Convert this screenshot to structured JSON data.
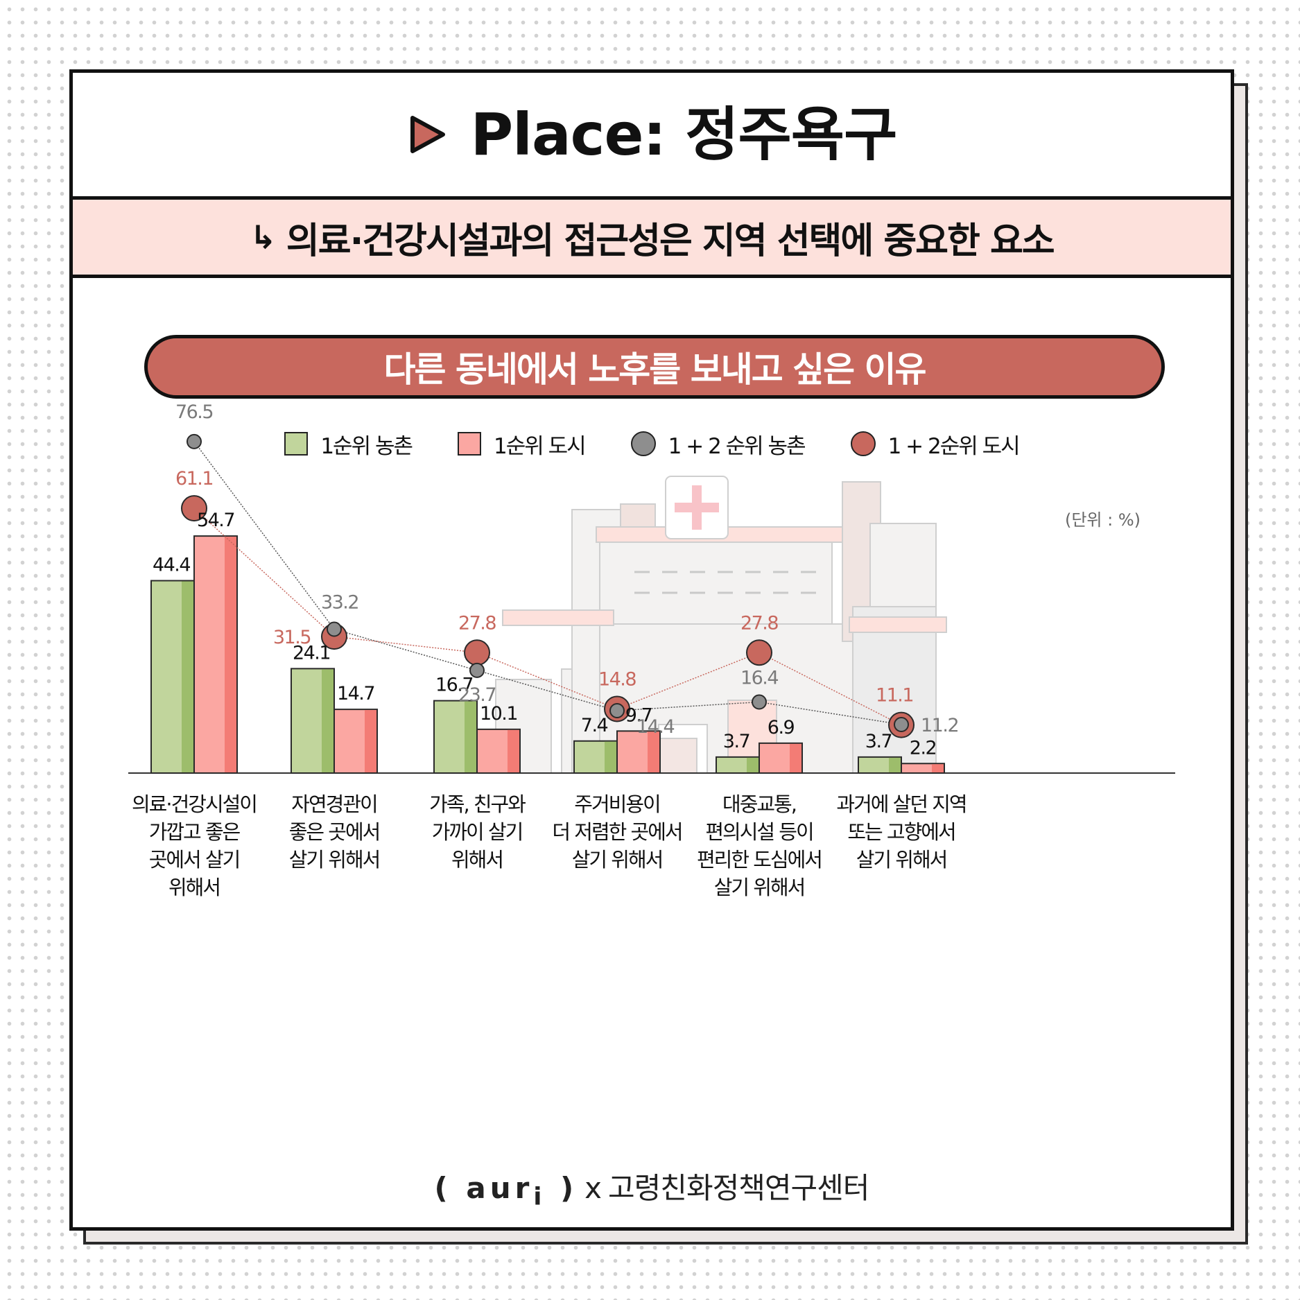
{
  "header": {
    "title": "Place: 정주욕구",
    "subtitle_arrow": "↳",
    "subtitle": "의료·건강시설과의 접근성은 지역 선택에 중요한 요소"
  },
  "chart_data": {
    "type": "bar",
    "title": "다른 동네에서 노후를 보내고 싶은 이유",
    "unit_note": "(단위 : %)",
    "categories": [
      "의료·건강시설이\n가깝고 좋은\n곳에서 살기\n위해서",
      "자연경관이\n좋은 곳에서\n살기 위해서",
      "가족, 친구와\n가까이 살기\n위해서",
      "주거비용이\n더 저렴한 곳에서\n살기 위해서",
      "대중교통,\n편의시설 등이\n편리한 도심에서\n살기 위해서",
      "과거에 살던 지역\n또는 고향에서\n살기 위해서"
    ],
    "series": [
      {
        "name": "1순위 농촌",
        "kind": "bar",
        "values": [
          44.4,
          24.1,
          16.7,
          7.4,
          3.7,
          3.7
        ],
        "labels": [
          "44.4",
          "24.1",
          "16.7",
          "7.4",
          "3.7",
          "3.7"
        ]
      },
      {
        "name": "1순위 도시",
        "kind": "bar",
        "values": [
          54.7,
          14.7,
          10.1,
          9.7,
          6.9,
          2.2
        ],
        "labels": [
          "54.7",
          "14.7",
          "10.1",
          "9.7",
          "6.9",
          "2.2"
        ]
      },
      {
        "name": "1 + 2 순위 농촌",
        "kind": "point",
        "values": [
          76.5,
          33.2,
          23.7,
          14.4,
          16.4,
          11.2
        ],
        "labels": [
          "76.5",
          "33.2",
          "23.7",
          "14.4",
          "16.4",
          "11.2"
        ]
      },
      {
        "name": "1 + 2순위 도시",
        "kind": "point",
        "values": [
          61.1,
          31.5,
          27.8,
          14.8,
          27.8,
          11.1
        ],
        "labels": [
          "61.1",
          "31.5",
          "27.8",
          "14.8",
          "27.8",
          "11.1"
        ]
      }
    ],
    "colors": {
      "bar_rural": "#c1d59c",
      "bar_rural_accent": "#9dbd6b",
      "bar_urban": "#fba7a2",
      "bar_urban_accent": "#f37c75",
      "point_rural": "#8e8e8e",
      "point_urban": "#c8685e",
      "label_rural_point": "#7a7a7a",
      "label_urban_point": "#c8685e"
    }
  },
  "footer": {
    "brand": "aur",
    "brand_suffix": "i",
    "separator": "x",
    "org": "고령친화정책연구센터"
  }
}
